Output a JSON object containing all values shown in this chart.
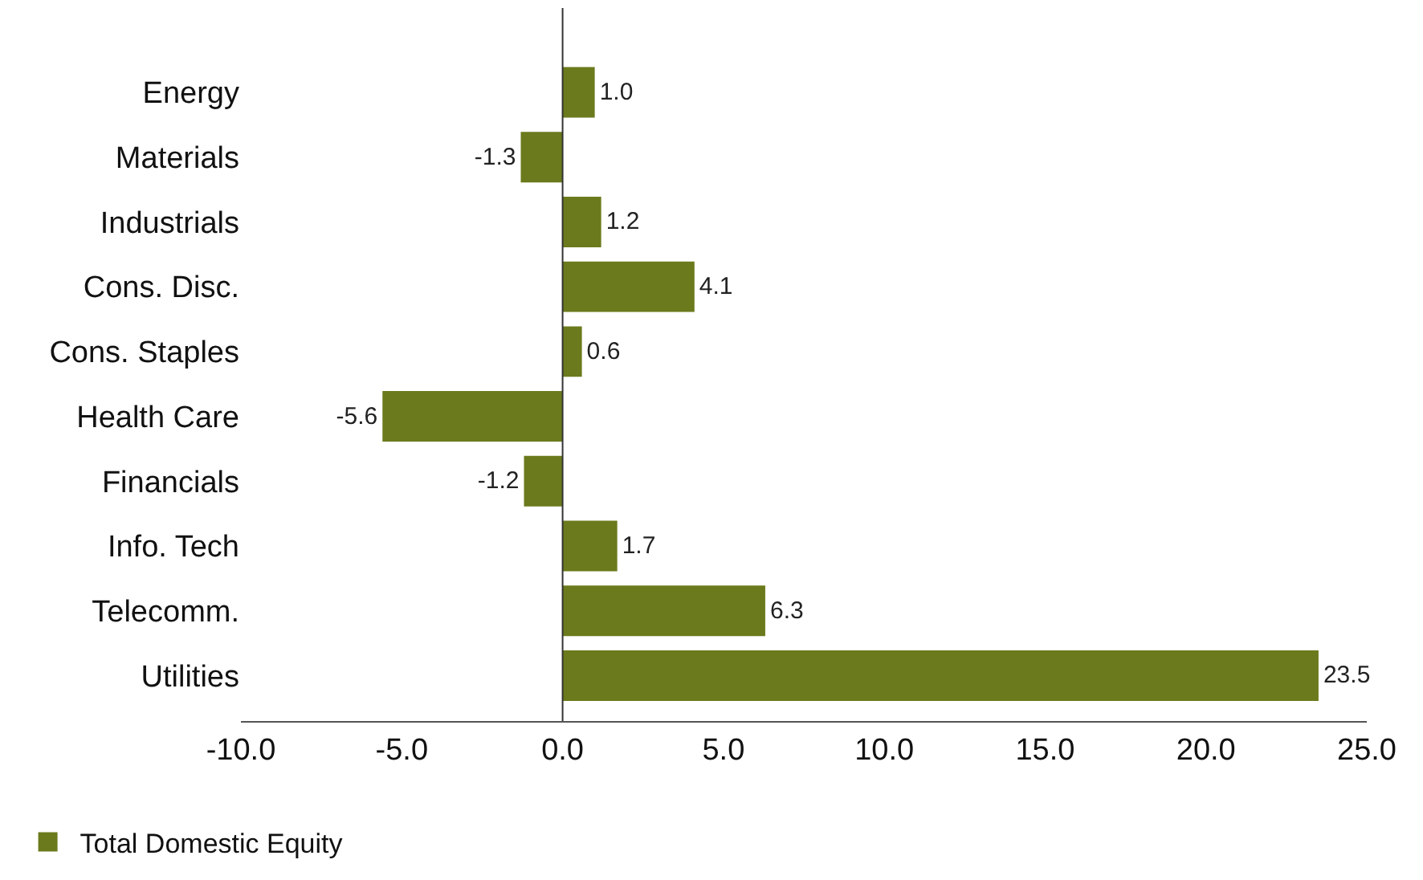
{
  "chart_data": {
    "type": "bar",
    "orientation": "horizontal",
    "categories": [
      "Energy",
      "Materials",
      "Industrials",
      "Cons. Disc.",
      "Cons. Staples",
      "Health Care",
      "Financials",
      "Info. Tech",
      "Telecomm.",
      "Utilities"
    ],
    "series": [
      {
        "name": "Total Domestic Equity",
        "color": "#6b7a1c",
        "values": [
          1.0,
          -1.3,
          1.2,
          4.1,
          0.6,
          -5.6,
          -1.2,
          1.7,
          6.3,
          23.5
        ],
        "value_labels": [
          "1.0",
          "-1.3",
          "1.2",
          "4.1",
          "0.6",
          "-5.6",
          "-1.2",
          "1.7",
          "6.3",
          "23.5"
        ]
      }
    ],
    "xlim": [
      -10,
      25
    ],
    "xticks": [
      {
        "value": -10,
        "label": "-10.0"
      },
      {
        "value": -5,
        "label": "-5.0"
      },
      {
        "value": 0,
        "label": "0.0"
      },
      {
        "value": 5,
        "label": "5.0"
      },
      {
        "value": 10,
        "label": "10.0"
      },
      {
        "value": 15,
        "label": "15.0"
      },
      {
        "value": 20,
        "label": "20.0"
      },
      {
        "value": 25,
        "label": "25.0"
      }
    ],
    "ref_lines": [
      {
        "axis": "x",
        "value": 0,
        "color": "#333333"
      }
    ],
    "legend": "bottom left"
  }
}
